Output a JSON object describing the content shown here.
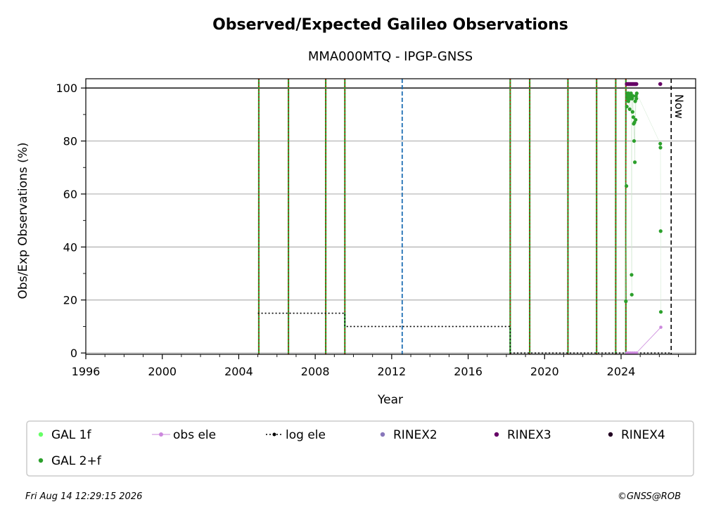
{
  "chart_data": {
    "type": "scatter",
    "title": "Observed/Expected Galileo Observations",
    "subtitle": "MMA000MTQ - IPGP-GNSS",
    "xlabel": "Year",
    "ylabel": "Obs/Exp Observations (%)",
    "xlim": [
      1996,
      2027.9
    ],
    "ylim": [
      -0.5,
      103.5
    ],
    "x_ticks": [
      1996,
      2000,
      2004,
      2008,
      2012,
      2016,
      2020,
      2024
    ],
    "y_ticks": [
      0,
      20,
      40,
      60,
      80,
      100
    ],
    "grid": "horizontal",
    "reference_line_y": 100,
    "now": {
      "x": 2026.62,
      "label": "Now"
    },
    "event_lines_x": [
      2005.05,
      2006.6,
      2008.55,
      2009.55,
      2018.2,
      2019.22,
      2021.22,
      2022.72,
      2023.72,
      2024.25
    ],
    "blue_dashed_line_x": 2012.55,
    "log_ele": {
      "name": "log ele",
      "points": [
        [
          2005.0,
          15
        ],
        [
          2009.55,
          15
        ],
        [
          2009.55,
          10
        ],
        [
          2018.2,
          10
        ],
        [
          2018.2,
          0
        ],
        [
          2026.62,
          0
        ]
      ]
    },
    "series": [
      {
        "name": "GAL 1f",
        "color": "#66ff66",
        "points": []
      },
      {
        "name": "GAL 2+f",
        "color": "#2ca02c",
        "points": [
          [
            2024.25,
            19.5
          ],
          [
            2024.28,
            63
          ],
          [
            2024.3,
            93
          ],
          [
            2024.32,
            97
          ],
          [
            2024.34,
            98
          ],
          [
            2024.36,
            96
          ],
          [
            2024.38,
            95
          ],
          [
            2024.4,
            98
          ],
          [
            2024.42,
            97
          ],
          [
            2024.45,
            92
          ],
          [
            2024.48,
            96
          ],
          [
            2024.5,
            97
          ],
          [
            2024.52,
            98
          ],
          [
            2024.55,
            29.5
          ],
          [
            2024.56,
            22
          ],
          [
            2024.58,
            96
          ],
          [
            2024.6,
            91
          ],
          [
            2024.62,
            97
          ],
          [
            2024.64,
            89
          ],
          [
            2024.66,
            86.5
          ],
          [
            2024.68,
            80
          ],
          [
            2024.7,
            87
          ],
          [
            2024.72,
            72
          ],
          [
            2024.74,
            95
          ],
          [
            2024.76,
            88
          ],
          [
            2024.78,
            97
          ],
          [
            2024.8,
            96
          ],
          [
            2024.82,
            98
          ],
          [
            2026.05,
            79
          ],
          [
            2026.06,
            77.5
          ],
          [
            2026.07,
            46
          ],
          [
            2026.08,
            15.5
          ]
        ]
      },
      {
        "name": "obs ele",
        "color": "#cc88dd",
        "points": [
          [
            2024.3,
            0
          ],
          [
            2024.4,
            0
          ],
          [
            2024.5,
            0
          ],
          [
            2024.6,
            0
          ],
          [
            2024.7,
            0
          ],
          [
            2024.8,
            0
          ],
          [
            2026.08,
            9.7
          ]
        ]
      },
      {
        "name": "RINEX2",
        "color": "#8877bb",
        "points": []
      },
      {
        "name": "RINEX3",
        "color": "#660066",
        "points": [
          [
            2024.3,
            101.5
          ],
          [
            2024.35,
            101.5
          ],
          [
            2024.4,
            101.5
          ],
          [
            2024.45,
            101.5
          ],
          [
            2024.5,
            101.5
          ],
          [
            2024.55,
            101.5
          ],
          [
            2024.6,
            101.5
          ],
          [
            2024.65,
            101.5
          ],
          [
            2024.7,
            101.5
          ],
          [
            2024.75,
            101.5
          ],
          [
            2024.8,
            101.5
          ],
          [
            2026.05,
            101.5
          ]
        ]
      },
      {
        "name": "RINEX4",
        "color": "#220022",
        "points": []
      }
    ],
    "legend_position": "bottom"
  },
  "legend": {
    "items": [
      {
        "label": "GAL 1f",
        "kind": "dot",
        "color": "#66ff66"
      },
      {
        "label": "obs ele",
        "kind": "line-dot",
        "color": "#cc88dd"
      },
      {
        "label": "log ele",
        "kind": "dotted",
        "color": "#000000"
      },
      {
        "label": "RINEX2",
        "kind": "dot",
        "color": "#8877bb"
      },
      {
        "label": "RINEX3",
        "kind": "dot",
        "color": "#660066"
      },
      {
        "label": "RINEX4",
        "kind": "dot",
        "color": "#220022"
      },
      {
        "label": "GAL 2+f",
        "kind": "dot",
        "color": "#2ca02c"
      }
    ]
  },
  "footer": {
    "timestamp": "Fri Aug 14 12:29:15 2026",
    "credit": "©GNSS@ROB"
  }
}
